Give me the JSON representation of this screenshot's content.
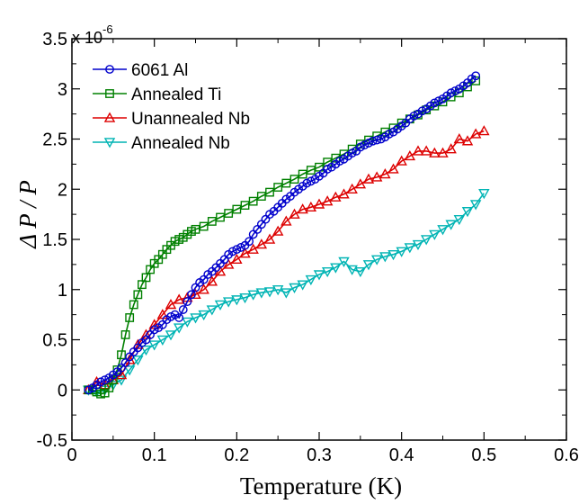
{
  "chart_data": {
    "type": "line",
    "xlabel": "Temperature (K)",
    "ylabel": "Δ P / P",
    "y_multiplier": "x 10",
    "y_exponent": "-6",
    "xlim": [
      0,
      0.6
    ],
    "ylim": [
      -0.5,
      3.5
    ],
    "xticks": [
      0,
      0.1,
      0.2,
      0.3,
      0.4,
      0.5,
      0.6
    ],
    "xtick_labels": [
      "0",
      "0.1",
      "0.2",
      "0.3",
      "0.4",
      "0.5",
      "0.6"
    ],
    "yticks": [
      -0.5,
      0,
      0.5,
      1,
      1.5,
      2,
      2.5,
      3,
      3.5
    ],
    "ytick_labels": [
      "-0.5",
      "0",
      "0.5",
      "1",
      "1.5",
      "2",
      "2.5",
      "3",
      "3.5"
    ],
    "grid": false,
    "legend_position": "top-left",
    "series": [
      {
        "name": "6061 Al",
        "color": "#0000cc",
        "marker": "circle",
        "x": [
          0.02,
          0.025,
          0.03,
          0.035,
          0.04,
          0.045,
          0.05,
          0.055,
          0.06,
          0.065,
          0.07,
          0.075,
          0.08,
          0.085,
          0.09,
          0.095,
          0.1,
          0.105,
          0.11,
          0.115,
          0.12,
          0.125,
          0.13,
          0.135,
          0.14,
          0.145,
          0.15,
          0.155,
          0.16,
          0.165,
          0.17,
          0.175,
          0.18,
          0.185,
          0.19,
          0.195,
          0.2,
          0.205,
          0.21,
          0.215,
          0.22,
          0.225,
          0.23,
          0.235,
          0.24,
          0.245,
          0.25,
          0.255,
          0.26,
          0.265,
          0.27,
          0.275,
          0.28,
          0.285,
          0.29,
          0.295,
          0.3,
          0.305,
          0.31,
          0.315,
          0.32,
          0.325,
          0.33,
          0.335,
          0.34,
          0.345,
          0.35,
          0.355,
          0.36,
          0.365,
          0.37,
          0.375,
          0.38,
          0.385,
          0.39,
          0.395,
          0.4,
          0.405,
          0.41,
          0.415,
          0.42,
          0.425,
          0.43,
          0.435,
          0.44,
          0.445,
          0.45,
          0.455,
          0.46,
          0.465,
          0.47,
          0.475,
          0.48,
          0.485,
          0.49
        ],
        "y": [
          0,
          0.02,
          0.05,
          0.08,
          0.1,
          0.12,
          0.15,
          0.18,
          0.22,
          0.27,
          0.33,
          0.38,
          0.42,
          0.47,
          0.5,
          0.55,
          0.6,
          0.62,
          0.65,
          0.7,
          0.73,
          0.75,
          0.72,
          0.8,
          0.88,
          0.95,
          1.02,
          1.07,
          1.1,
          1.15,
          1.18,
          1.22,
          1.26,
          1.3,
          1.35,
          1.38,
          1.4,
          1.42,
          1.44,
          1.48,
          1.55,
          1.6,
          1.65,
          1.7,
          1.75,
          1.78,
          1.82,
          1.86,
          1.9,
          1.93,
          1.97,
          2.0,
          2.03,
          2.06,
          2.08,
          2.1,
          2.13,
          2.16,
          2.2,
          2.22,
          2.25,
          2.28,
          2.3,
          2.33,
          2.36,
          2.38,
          2.42,
          2.44,
          2.46,
          2.48,
          2.49,
          2.5,
          2.52,
          2.55,
          2.57,
          2.6,
          2.63,
          2.66,
          2.7,
          2.73,
          2.75,
          2.78,
          2.8,
          2.83,
          2.86,
          2.88,
          2.9,
          2.93,
          2.96,
          2.98,
          3.0,
          3.03,
          3.06,
          3.1,
          3.13
        ]
      },
      {
        "name": "Annealed Ti",
        "color": "#008000",
        "marker": "square",
        "x": [
          0.02,
          0.025,
          0.03,
          0.035,
          0.04,
          0.045,
          0.05,
          0.055,
          0.06,
          0.065,
          0.07,
          0.075,
          0.08,
          0.085,
          0.09,
          0.095,
          0.1,
          0.105,
          0.11,
          0.115,
          0.12,
          0.125,
          0.13,
          0.135,
          0.14,
          0.145,
          0.15,
          0.16,
          0.17,
          0.18,
          0.19,
          0.2,
          0.21,
          0.22,
          0.23,
          0.24,
          0.25,
          0.26,
          0.27,
          0.28,
          0.29,
          0.3,
          0.31,
          0.32,
          0.33,
          0.34,
          0.35,
          0.36,
          0.37,
          0.38,
          0.39,
          0.4,
          0.41,
          0.42,
          0.43,
          0.44,
          0.45,
          0.46,
          0.47,
          0.48,
          0.49
        ],
        "y": [
          0,
          0.0,
          -0.02,
          -0.04,
          -0.03,
          0.02,
          0.1,
          0.2,
          0.35,
          0.55,
          0.72,
          0.85,
          0.95,
          1.05,
          1.12,
          1.2,
          1.26,
          1.3,
          1.35,
          1.4,
          1.44,
          1.48,
          1.5,
          1.52,
          1.55,
          1.58,
          1.6,
          1.63,
          1.68,
          1.72,
          1.76,
          1.8,
          1.84,
          1.88,
          1.93,
          1.97,
          2.02,
          2.06,
          2.1,
          2.15,
          2.19,
          2.22,
          2.27,
          2.31,
          2.35,
          2.4,
          2.45,
          2.49,
          2.53,
          2.57,
          2.61,
          2.66,
          2.7,
          2.74,
          2.79,
          2.83,
          2.87,
          2.92,
          2.96,
          3.02,
          3.08
        ]
      },
      {
        "name": "Unannealed Nb",
        "color": "#dd0000",
        "marker": "triangle-up",
        "x": [
          0.02,
          0.03,
          0.04,
          0.05,
          0.06,
          0.07,
          0.08,
          0.09,
          0.1,
          0.11,
          0.12,
          0.13,
          0.14,
          0.15,
          0.16,
          0.17,
          0.18,
          0.19,
          0.2,
          0.21,
          0.22,
          0.23,
          0.24,
          0.25,
          0.26,
          0.27,
          0.28,
          0.29,
          0.3,
          0.31,
          0.32,
          0.33,
          0.34,
          0.35,
          0.36,
          0.37,
          0.38,
          0.39,
          0.4,
          0.41,
          0.42,
          0.43,
          0.44,
          0.45,
          0.46,
          0.47,
          0.48,
          0.49,
          0.5
        ],
        "y": [
          0,
          0.08,
          0.05,
          0.1,
          0.15,
          0.3,
          0.45,
          0.55,
          0.65,
          0.75,
          0.85,
          0.9,
          0.92,
          0.95,
          1.0,
          1.08,
          1.18,
          1.25,
          1.3,
          1.36,
          1.4,
          1.45,
          1.5,
          1.58,
          1.68,
          1.75,
          1.8,
          1.82,
          1.85,
          1.88,
          1.92,
          1.95,
          2.0,
          2.05,
          2.1,
          2.12,
          2.15,
          2.2,
          2.28,
          2.33,
          2.38,
          2.38,
          2.36,
          2.36,
          2.4,
          2.5,
          2.48,
          2.55,
          2.58
        ]
      },
      {
        "name": "Annealed Nb",
        "color": "#00b4b4",
        "marker": "triangle-down",
        "x": [
          0.02,
          0.03,
          0.04,
          0.05,
          0.06,
          0.07,
          0.08,
          0.09,
          0.1,
          0.11,
          0.12,
          0.13,
          0.14,
          0.15,
          0.16,
          0.17,
          0.18,
          0.19,
          0.2,
          0.21,
          0.22,
          0.23,
          0.24,
          0.25,
          0.26,
          0.27,
          0.28,
          0.29,
          0.3,
          0.31,
          0.32,
          0.33,
          0.34,
          0.35,
          0.36,
          0.37,
          0.38,
          0.39,
          0.4,
          0.41,
          0.42,
          0.43,
          0.44,
          0.45,
          0.46,
          0.47,
          0.48,
          0.49,
          0.5
        ],
        "y": [
          0,
          -0.02,
          0.0,
          0.05,
          0.1,
          0.2,
          0.3,
          0.4,
          0.45,
          0.5,
          0.55,
          0.62,
          0.68,
          0.72,
          0.75,
          0.8,
          0.85,
          0.88,
          0.9,
          0.92,
          0.95,
          0.97,
          0.98,
          1.0,
          0.97,
          1.02,
          1.05,
          1.1,
          1.15,
          1.18,
          1.22,
          1.28,
          1.2,
          1.18,
          1.25,
          1.3,
          1.33,
          1.35,
          1.38,
          1.42,
          1.45,
          1.5,
          1.55,
          1.6,
          1.65,
          1.7,
          1.78,
          1.85,
          1.96
        ]
      }
    ]
  }
}
